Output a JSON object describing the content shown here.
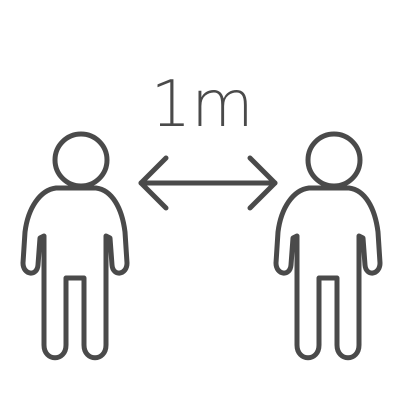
{
  "icon": {
    "distance_label": "1m",
    "semantic": "social-distancing-icon",
    "stroke_color": "#4a4a4a",
    "background_color": "#ffffff"
  }
}
